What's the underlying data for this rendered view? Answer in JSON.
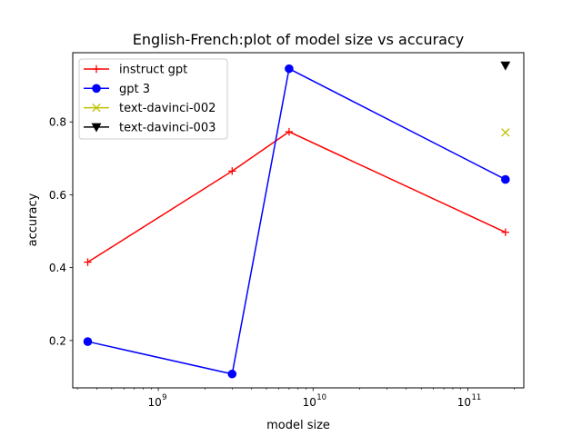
{
  "chart_data": {
    "type": "line",
    "title": "English-French:plot of model size vs accuracy",
    "xlabel": "model size",
    "ylabel": "accuracy",
    "xscale": "log",
    "xlim": [
      280000000,
      230000000000
    ],
    "ylim": [
      0.07,
      0.99
    ],
    "grid": false,
    "legend_position": "top-left",
    "x_ticks": [
      {
        "value": 1000000000,
        "base": "10",
        "exp": "9"
      },
      {
        "value": 10000000000,
        "base": "10",
        "exp": "10"
      },
      {
        "value": 100000000000,
        "base": "10",
        "exp": "11"
      }
    ],
    "y_ticks": [
      {
        "value": 0.2,
        "label": "0.2"
      },
      {
        "value": 0.4,
        "label": "0.4"
      },
      {
        "value": 0.6,
        "label": "0.6"
      },
      {
        "value": 0.8,
        "label": "0.8"
      }
    ],
    "series": [
      {
        "name": "instruct gpt",
        "color": "#ff0000",
        "marker": "plus",
        "line": true,
        "x": [
          350000000,
          3000000000,
          7000000000,
          175000000000
        ],
        "y": [
          0.415,
          0.665,
          0.773,
          0.497
        ]
      },
      {
        "name": "gpt 3",
        "color": "#0000ff",
        "marker": "circle",
        "line": true,
        "x": [
          350000000,
          3000000000,
          7000000000,
          175000000000
        ],
        "y": [
          0.197,
          0.108,
          0.946,
          0.642
        ]
      },
      {
        "name": "text-davinci-002",
        "color": "#bfbf00",
        "marker": "x",
        "line": false,
        "x": [
          175000000000
        ],
        "y": [
          0.771
        ]
      },
      {
        "name": "text-davinci-003",
        "color": "#000000",
        "marker": "triangle-down",
        "line": false,
        "x": [
          175000000000
        ],
        "y": [
          0.955
        ]
      }
    ]
  }
}
